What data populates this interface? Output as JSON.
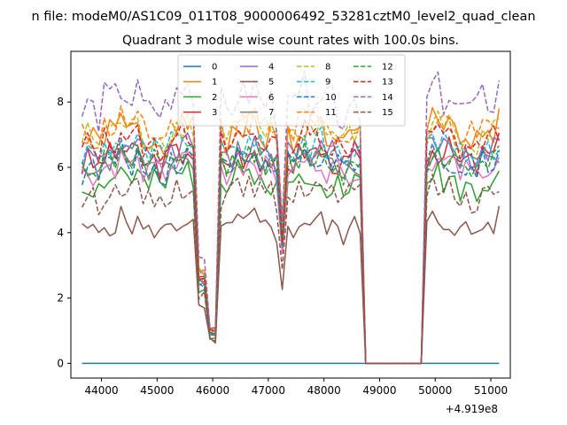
{
  "figure": {
    "suptitle": "n file: modeM0/AS1C09_011T08_9000006492_53281cztM0_level2_quad_clean",
    "title": "Quadrant 3 module wise count rates with 100.0s bins.",
    "x_offset_label": "+4.919e8"
  },
  "chart_data": {
    "type": "line",
    "title": "Quadrant 3 module wise count rates with 100.0s bins.",
    "xlabel": "",
    "ylabel": "",
    "x_offset": 491900000,
    "xlim": [
      43450,
      51350
    ],
    "ylim": [
      -0.45,
      9.55
    ],
    "xticks": [
      44000,
      45000,
      46000,
      47000,
      48000,
      49000,
      50000,
      51000
    ],
    "xtick_labels": [
      "44000",
      "45000",
      "46000",
      "47000",
      "48000",
      "49000",
      "50000",
      "51000"
    ],
    "yticks": [
      0,
      2,
      4,
      6,
      8
    ],
    "ytick_labels": [
      "0",
      "2",
      "4",
      "6",
      "8"
    ],
    "grid": false,
    "legend": {
      "position": "top-center",
      "columns": 4
    },
    "series": [
      {
        "name": "0",
        "color": "#1f77b4",
        "dash": "solid",
        "zero": true
      },
      {
        "name": "1",
        "color": "#ff7f0e",
        "dash": "solid",
        "base": 7.0,
        "amp": 0.5,
        "seed": 1
      },
      {
        "name": "2",
        "color": "#2ca02c",
        "dash": "solid",
        "base": 5.6,
        "amp": 0.45,
        "seed": 2
      },
      {
        "name": "3",
        "color": "#d62728",
        "dash": "solid",
        "base": 6.3,
        "amp": 0.45,
        "seed": 3
      },
      {
        "name": "4",
        "color": "#9467bd",
        "dash": "solid",
        "base": 6.5,
        "amp": 0.45,
        "seed": 4
      },
      {
        "name": "5",
        "color": "#8c564b",
        "dash": "solid",
        "base": 4.2,
        "amp": 0.35,
        "seed": 5
      },
      {
        "name": "6",
        "color": "#e377c2",
        "dash": "solid",
        "base": 6.0,
        "amp": 0.4,
        "seed": 6
      },
      {
        "name": "7",
        "color": "#7f7f7f",
        "dash": "solid",
        "base": 6.2,
        "amp": 0.4,
        "seed": 7
      },
      {
        "name": "8",
        "color": "#bcbd22",
        "dash": "dashed",
        "base": 7.1,
        "amp": 0.45,
        "seed": 8
      },
      {
        "name": "9",
        "color": "#17becf",
        "dash": "dashed",
        "base": 6.6,
        "amp": 0.45,
        "seed": 9
      },
      {
        "name": "10",
        "color": "#1f77b4",
        "dash": "dashed",
        "base": 6.1,
        "amp": 0.45,
        "seed": 10
      },
      {
        "name": "11",
        "color": "#ff7f0e",
        "dash": "dashed",
        "base": 7.2,
        "amp": 0.5,
        "seed": 11
      },
      {
        "name": "12",
        "color": "#2ca02c",
        "dash": "dashed",
        "base": 6.2,
        "amp": 0.45,
        "seed": 12
      },
      {
        "name": "13",
        "color": "#d62728",
        "dash": "dashed",
        "base": 6.8,
        "amp": 0.45,
        "seed": 13
      },
      {
        "name": "14",
        "color": "#9467bd",
        "dash": "dashed",
        "base": 8.0,
        "amp": 0.6,
        "seed": 14
      },
      {
        "name": "15",
        "color": "#8c564b",
        "dash": "dashed",
        "base": 5.2,
        "amp": 0.4,
        "seed": 15
      }
    ],
    "observation": {
      "bin_seconds": 100,
      "segments": [
        {
          "start": 43650,
          "end": 45650,
          "level": 1.0
        },
        {
          "start": 45650,
          "end": 45850,
          "level": 0.4
        },
        {
          "start": 45950,
          "end": 46050,
          "level": 0.15
        },
        {
          "start": 46150,
          "end": 47200,
          "level": 1.0
        },
        {
          "start": 47200,
          "end": 47300,
          "level": 0.6
        },
        {
          "start": 47350,
          "end": 48650,
          "level": 1.0
        },
        {
          "start": 48650,
          "end": 48700,
          "level": 0.1
        },
        {
          "start": 48800,
          "end": 49750,
          "level": 0.0
        },
        {
          "start": 49850,
          "end": 51150,
          "level": 1.0
        }
      ]
    }
  }
}
